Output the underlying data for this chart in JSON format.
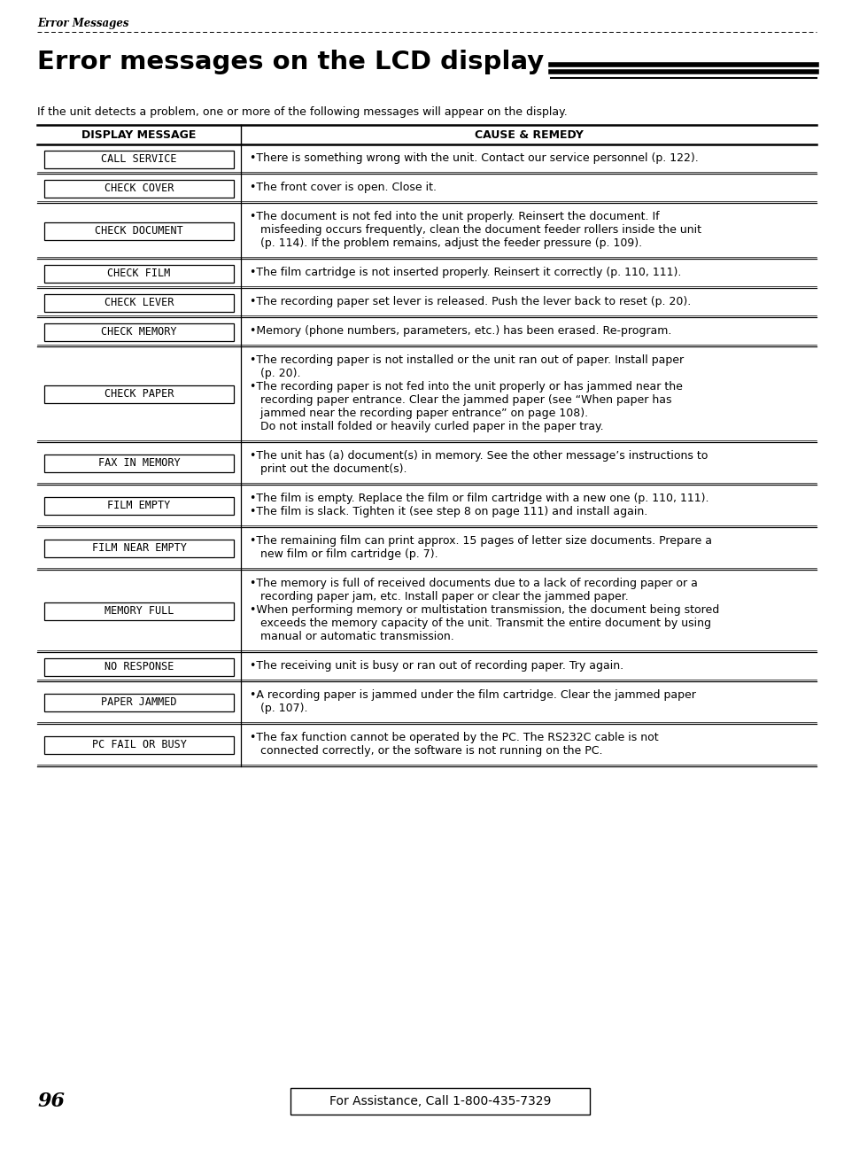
{
  "page_title_italic": "Error Messages",
  "main_title": "Error messages on the LCD display",
  "intro_text": "If the unit detects a problem, one or more of the following messages will appear on the display.",
  "col1_header": "DISPLAY MESSAGE",
  "col2_header": "CAUSE & REMEDY",
  "rows": [
    {
      "message": "CALL SERVICE",
      "remedy_lines": [
        "•There is something wrong with the unit. Contact our service personnel (p. 122)."
      ]
    },
    {
      "message": "CHECK COVER",
      "remedy_lines": [
        "•The front cover is open. Close it."
      ]
    },
    {
      "message": "CHECK DOCUMENT",
      "remedy_lines": [
        "•The document is not fed into the unit properly. Reinsert the document. If",
        "   misfeeding occurs frequently, clean the document feeder rollers inside the unit",
        "   (p. 114). If the problem remains, adjust the feeder pressure (p. 109)."
      ]
    },
    {
      "message": "CHECK FILM",
      "remedy_lines": [
        "•The film cartridge is not inserted properly. Reinsert it correctly (p. 110, 111)."
      ]
    },
    {
      "message": "CHECK LEVER",
      "remedy_lines": [
        "•The recording paper set lever is released. Push the lever back to reset (p. 20)."
      ]
    },
    {
      "message": "CHECK MEMORY",
      "remedy_lines": [
        "•Memory (phone numbers, parameters, etc.) has been erased. Re-program."
      ]
    },
    {
      "message": "CHECK PAPER",
      "remedy_lines": [
        "•The recording paper is not installed or the unit ran out of paper. Install paper",
        "   (p. 20).",
        "•The recording paper is not fed into the unit properly or has jammed near the",
        "   recording paper entrance. Clear the jammed paper (see “When paper has",
        "   jammed near the recording paper entrance” on page 108).",
        "   Do not install folded or heavily curled paper in the paper tray."
      ]
    },
    {
      "message": "FAX IN MEMORY",
      "remedy_lines": [
        "•The unit has (a) document(s) in memory. See the other message’s instructions to",
        "   print out the document(s)."
      ]
    },
    {
      "message": "FILM EMPTY",
      "remedy_lines": [
        "•The film is empty. Replace the film or film cartridge with a new one (p. 110, 111).",
        "•The film is slack. Tighten it (see step 8 on page 111) and install again."
      ]
    },
    {
      "message": "FILM NEAR EMPTY",
      "remedy_lines": [
        "•The remaining film can print approx. 15 pages of letter size documents. Prepare a",
        "   new film or film cartridge (p. 7)."
      ]
    },
    {
      "message": "MEMORY FULL",
      "remedy_lines": [
        "•The memory is full of received documents due to a lack of recording paper or a",
        "   recording paper jam, etc. Install paper or clear the jammed paper.",
        "•When performing memory or multistation transmission, the document being stored",
        "   exceeds the memory capacity of the unit. Transmit the entire document by using",
        "   manual or automatic transmission."
      ]
    },
    {
      "message": "NO RESPONSE",
      "remedy_lines": [
        "•The receiving unit is busy or ran out of recording paper. Try again."
      ]
    },
    {
      "message": "PAPER JAMMED",
      "remedy_lines": [
        "•A recording paper is jammed under the film cartridge. Clear the jammed paper",
        "   (p. 107)."
      ]
    },
    {
      "message": "PC FAIL OR BUSY",
      "remedy_lines": [
        "•The fax function cannot be operated by the PC. The RS232C cable is not",
        "   connected correctly, or the software is not running on the PC."
      ]
    }
  ],
  "footer_page": "96",
  "footer_assistance": "For Assistance, Call 1-800-435-7329",
  "bg_color": "#ffffff",
  "text_color": "#000000"
}
